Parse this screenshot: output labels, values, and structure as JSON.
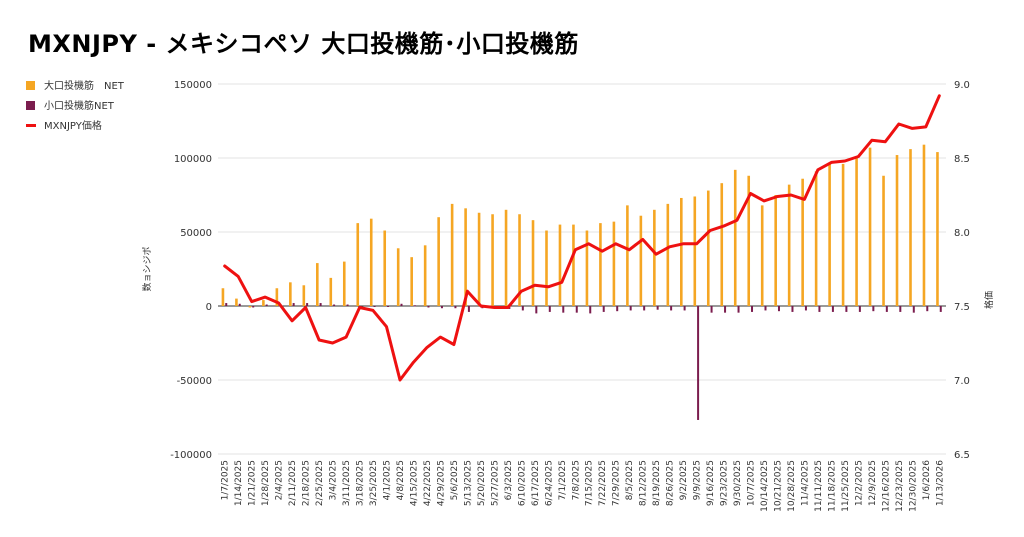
{
  "chart_data": {
    "type": "bar+line",
    "title": "MXNJPY - メキシコペソ 大口投機筋･小口投機筋",
    "ylabel_left": "数ョシジポ",
    "ylabel_right": "格価",
    "left_axis": {
      "min": -100000,
      "max": 150000,
      "ticks": [
        150000,
        100000,
        50000,
        0,
        -50000,
        -100000
      ],
      "tick_labels": [
        "150000",
        "100000",
        "50000",
        "0",
        "-50000",
        "-100000"
      ]
    },
    "right_axis": {
      "min": 6.5,
      "max": 9.0,
      "ticks": [
        9.0,
        8.5,
        8.0,
        7.5,
        7.0,
        6.5
      ],
      "tick_labels": [
        "9.0",
        "8.5",
        "8.0",
        "7.5",
        "7.0",
        "6.5"
      ]
    },
    "legend": {
      "position": "top-left",
      "items": [
        {
          "label": "大口投機筋　NET",
          "color": "#f5a623",
          "kind": "square"
        },
        {
          "label": "小口投機筋NET",
          "color": "#7b1d4e",
          "kind": "square"
        },
        {
          "label": "MXNJPY価格",
          "color": "#ee1111",
          "kind": "line"
        }
      ]
    },
    "categories": [
      "1/7/2025",
      "1/14/2025",
      "1/21/2025",
      "1/28/2025",
      "2/4/2025",
      "2/11/2025",
      "2/18/2025",
      "2/25/2025",
      "3/4/2025",
      "3/11/2025",
      "3/18/2025",
      "3/25/2025",
      "4/1/2025",
      "4/8/2025",
      "4/15/2025",
      "4/22/2025",
      "4/29/2025",
      "5/6/2025",
      "5/13/2025",
      "5/20/2025",
      "5/27/2025",
      "6/3/2025",
      "6/10/2025",
      "6/17/2025",
      "6/24/2025",
      "7/1/2025",
      "7/8/2025",
      "7/15/2025",
      "7/22/2025",
      "7/29/2025",
      "8/5/2025",
      "8/12/2025",
      "8/19/2025",
      "8/26/2025",
      "9/2/2025",
      "9/9/2025",
      "9/16/2025",
      "9/23/2025",
      "9/30/2025",
      "10/7/2025",
      "10/14/2025",
      "10/21/2025",
      "10/28/2025",
      "11/4/2025",
      "11/11/2025",
      "11/18/2025",
      "11/25/2025",
      "12/2/2025",
      "12/9/2025",
      "12/16/2025",
      "12/23/2025",
      "12/30/2025",
      "1/6/2026",
      "1/13/2026"
    ],
    "series": [
      {
        "name": "大口投機筋　NET",
        "axis": "left",
        "color": "#f5a623",
        "values": [
          12000,
          5000,
          -1000,
          4000,
          12000,
          16000,
          14000,
          29000,
          19000,
          30000,
          56000,
          59000,
          51000,
          39000,
          33000,
          41000,
          60000,
          69000,
          66000,
          63000,
          62000,
          65000,
          62000,
          58000,
          51000,
          55000,
          55000,
          51000,
          56000,
          57000,
          68000,
          61000,
          65000,
          69000,
          73000,
          74000,
          78000,
          83000,
          92000,
          88000,
          68000,
          75000,
          82000,
          86000,
          91000,
          97000,
          96000,
          100000,
          107000,
          88000,
          102000,
          106000,
          109000,
          104000
        ]
      },
      {
        "name": "小口投機筋NET",
        "axis": "left",
        "color": "#7b1d4e",
        "values": [
          2000,
          1500,
          -1000,
          1000,
          1000,
          2000,
          2000,
          2000,
          1000,
          1000,
          -500,
          -300,
          -500,
          1500,
          500,
          -1000,
          -1500,
          -1500,
          -4000,
          -1500,
          -2000,
          -2000,
          -3000,
          -5000,
          -4000,
          -4500,
          -4500,
          -5000,
          -4000,
          -3500,
          -3000,
          -3000,
          -2500,
          -3000,
          -3000,
          -77000,
          -4500,
          -4500,
          -4500,
          -4000,
          -3000,
          -3500,
          -4000,
          -3000,
          -4000,
          -4000,
          -4000,
          -4000,
          -3500,
          -4000,
          -4000,
          -4500,
          -3500,
          -4000
        ]
      },
      {
        "name": "MXNJPY価格",
        "axis": "right",
        "color": "#ee1111",
        "values": [
          7.77,
          7.7,
          7.53,
          7.56,
          7.52,
          7.4,
          7.49,
          7.27,
          7.25,
          7.29,
          7.49,
          7.47,
          7.36,
          7.0,
          7.12,
          7.22,
          7.29,
          7.24,
          7.6,
          7.5,
          7.49,
          7.49,
          7.6,
          7.64,
          7.63,
          7.66,
          7.88,
          7.92,
          7.87,
          7.92,
          7.88,
          7.95,
          7.85,
          7.9,
          7.92,
          7.92,
          8.01,
          8.04,
          8.08,
          8.26,
          8.21,
          8.24,
          8.25,
          8.22,
          8.42,
          8.47,
          8.48,
          8.51,
          8.62,
          8.61,
          8.73,
          8.7,
          8.71,
          8.92
        ]
      }
    ]
  }
}
